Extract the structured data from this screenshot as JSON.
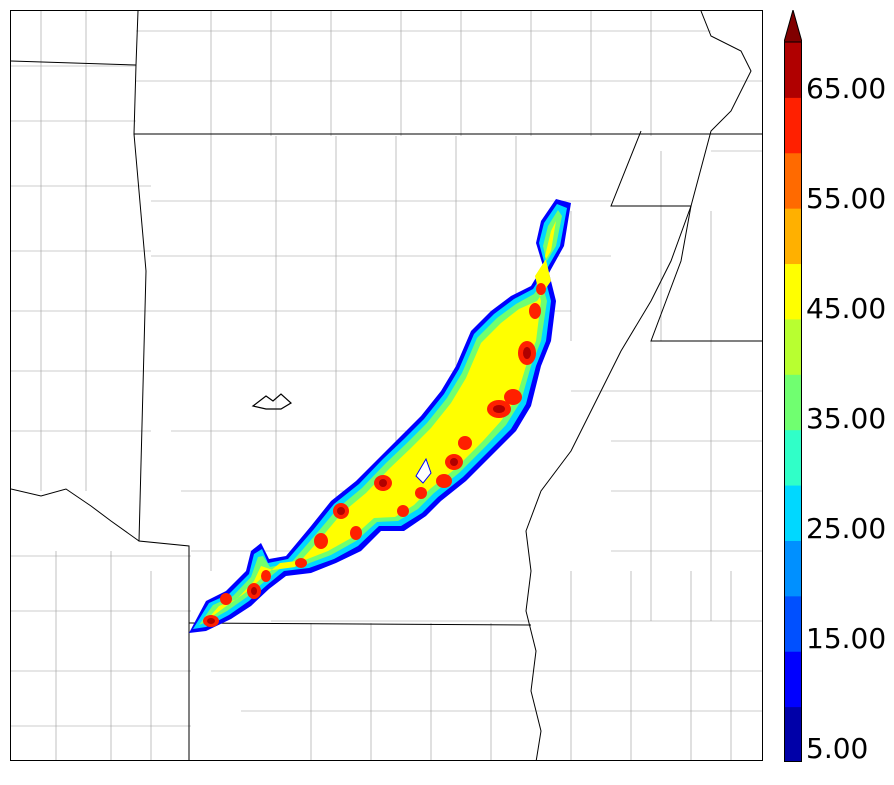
{
  "colorbar": {
    "tick_labels": [
      "5.00",
      "15.00",
      "25.00",
      "35.00",
      "45.00",
      "55.00",
      "65.00"
    ],
    "levels": [
      5,
      10,
      15,
      20,
      25,
      30,
      35,
      40,
      45,
      50,
      55,
      60,
      65,
      70
    ],
    "colors": [
      "#0000a8",
      "#0000ff",
      "#0050ff",
      "#0090ff",
      "#00d8ff",
      "#30ffc8",
      "#70ff70",
      "#b8ff30",
      "#ffff00",
      "#ffb000",
      "#ff6a00",
      "#ff2000",
      "#b00000",
      "#800000"
    ],
    "extend": "max"
  }
}
